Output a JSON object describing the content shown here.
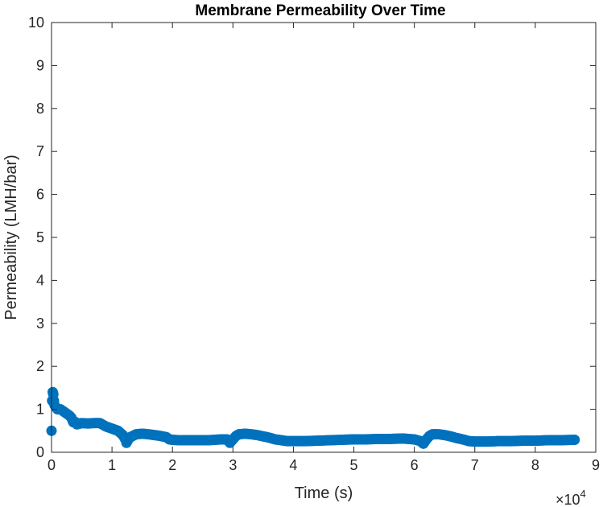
{
  "chart_data": {
    "type": "scatter",
    "title": "Membrane Permeability Over Time",
    "xlabel": "Time (s)",
    "ylabel": "Permeability (LMH/bar)",
    "x_exponent_label": "×10",
    "x_exponent_power": "4",
    "xlim": [
      0,
      90000
    ],
    "ylim": [
      0,
      10
    ],
    "xticks": [
      0,
      10000,
      20000,
      30000,
      40000,
      50000,
      60000,
      70000,
      80000,
      90000
    ],
    "xtick_labels": [
      "0",
      "1",
      "2",
      "3",
      "4",
      "5",
      "6",
      "7",
      "8",
      "9"
    ],
    "yticks": [
      0,
      1,
      2,
      3,
      4,
      5,
      6,
      7,
      8,
      9,
      10
    ],
    "ytick_labels": [
      "0",
      "1",
      "2",
      "3",
      "4",
      "5",
      "6",
      "7",
      "8",
      "9",
      "10"
    ],
    "grid": false,
    "marker": "filled-circle",
    "series_color": "#0072BD",
    "series": [
      {
        "x": [
          0,
          100,
          200,
          300,
          400,
          500,
          700,
          1000,
          1500,
          2000,
          2500,
          3000,
          3300,
          3600,
          4000,
          4200,
          5000,
          6000,
          7000,
          8000,
          9000,
          10000,
          11000,
          11800,
          12200,
          12400,
          12700,
          13000,
          14000,
          15000,
          16000,
          17000,
          18000,
          19000,
          19500,
          20000,
          21000,
          22000,
          24000,
          26000,
          28000,
          29000,
          29500,
          30000,
          30500,
          31000,
          32000,
          33000,
          34000,
          35000,
          36000,
          37000,
          38000,
          39000,
          40000,
          42000,
          44000,
          46000,
          48000,
          50000,
          52000,
          54000,
          56000,
          58000,
          60000,
          61000,
          61500,
          62000,
          62500,
          63000,
          64000,
          65000,
          66000,
          67000,
          68000,
          69000,
          70000,
          72000,
          74000,
          76000,
          78000,
          80000,
          82000,
          84000,
          86500
        ],
        "y": [
          0.5,
          1.2,
          1.4,
          1.35,
          1.2,
          1.1,
          1.05,
          1.0,
          1.0,
          0.95,
          0.9,
          0.85,
          0.8,
          0.7,
          0.7,
          0.65,
          0.68,
          0.67,
          0.68,
          0.68,
          0.6,
          0.55,
          0.5,
          0.4,
          0.3,
          0.22,
          0.3,
          0.35,
          0.42,
          0.43,
          0.42,
          0.4,
          0.38,
          0.35,
          0.3,
          0.29,
          0.28,
          0.28,
          0.28,
          0.28,
          0.3,
          0.3,
          0.22,
          0.3,
          0.38,
          0.42,
          0.43,
          0.42,
          0.4,
          0.37,
          0.34,
          0.3,
          0.28,
          0.26,
          0.26,
          0.26,
          0.27,
          0.28,
          0.29,
          0.3,
          0.3,
          0.31,
          0.31,
          0.32,
          0.3,
          0.26,
          0.2,
          0.3,
          0.38,
          0.42,
          0.42,
          0.4,
          0.37,
          0.33,
          0.3,
          0.26,
          0.25,
          0.25,
          0.26,
          0.26,
          0.27,
          0.27,
          0.28,
          0.28,
          0.29
        ]
      }
    ]
  }
}
